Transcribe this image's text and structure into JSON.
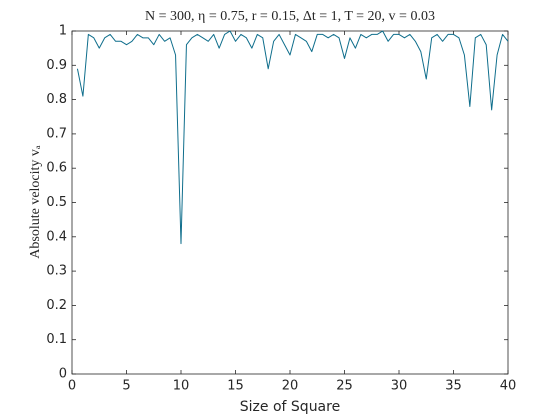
{
  "chart_data": {
    "type": "line",
    "title": "N = 300, η = 0.75, r = 0.15, Δt = 1, T = 20, v = 0.03",
    "x_label": "Size of Square",
    "y_label": "Absolute velocity vₐ",
    "x": [
      0.5,
      1,
      1.5,
      2,
      2.5,
      3,
      3.5,
      4,
      4.5,
      5,
      5.5,
      6,
      6.5,
      7,
      7.5,
      8,
      8.5,
      9,
      9.5,
      10,
      10.5,
      11,
      11.5,
      12,
      12.5,
      13,
      13.5,
      14,
      14.5,
      15,
      15.5,
      16,
      16.5,
      17,
      17.5,
      18,
      18.5,
      19,
      19.5,
      20,
      20.5,
      21,
      21.5,
      22,
      22.5,
      23,
      23.5,
      24,
      24.5,
      25,
      25.5,
      26,
      26.5,
      27,
      27.5,
      28,
      28.5,
      29,
      29.5,
      30,
      30.5,
      31,
      31.5,
      32,
      32.5,
      33,
      33.5,
      34,
      34.5,
      35,
      35.5,
      36,
      36.5,
      37,
      37.5,
      38,
      38.5,
      39,
      39.5,
      40
    ],
    "series": [
      {
        "name": "v_a",
        "color": "#0f6e8c",
        "values": [
          0.89,
          0.81,
          0.99,
          0.98,
          0.95,
          0.98,
          0.99,
          0.97,
          0.97,
          0.96,
          0.97,
          0.99,
          0.98,
          0.98,
          0.96,
          0.99,
          0.97,
          0.98,
          0.93,
          0.38,
          0.96,
          0.98,
          0.99,
          0.98,
          0.97,
          0.99,
          0.95,
          0.99,
          1.0,
          0.97,
          0.99,
          0.98,
          0.95,
          0.99,
          0.98,
          0.89,
          0.97,
          0.99,
          0.96,
          0.93,
          0.99,
          0.98,
          0.97,
          0.94,
          0.99,
          0.99,
          0.98,
          0.99,
          0.98,
          0.92,
          0.98,
          0.95,
          0.99,
          0.98,
          0.99,
          0.99,
          1.0,
          0.97,
          0.99,
          0.99,
          0.98,
          0.99,
          0.97,
          0.94,
          0.86,
          0.98,
          0.99,
          0.97,
          0.99,
          0.99,
          0.98,
          0.93,
          0.78,
          0.98,
          0.99,
          0.96,
          0.77,
          0.93,
          0.99,
          0.97
        ]
      }
    ],
    "xlim": [
      0,
      40
    ],
    "xticks": [
      0,
      5,
      10,
      15,
      20,
      25,
      30,
      35,
      40
    ],
    "ylim": [
      0,
      1
    ],
    "yticks": [
      0,
      0.1,
      0.2,
      0.3,
      0.4,
      0.5,
      0.6,
      0.7,
      0.8,
      0.9,
      1
    ],
    "grid": false
  }
}
